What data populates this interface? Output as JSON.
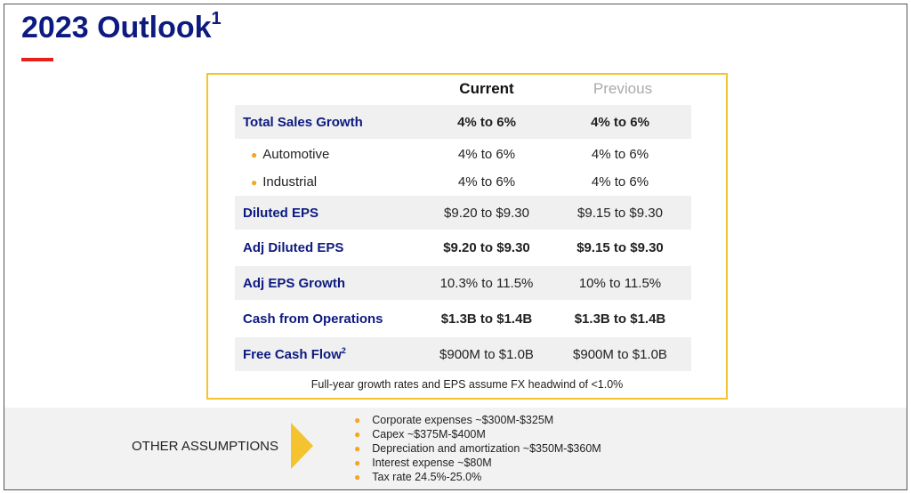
{
  "title": "2023 Outlook",
  "title_sup": "1",
  "headers": {
    "current": "Current",
    "previous": "Previous"
  },
  "rows": [
    {
      "label": "Total Sales Growth",
      "current": "4% to 6%",
      "previous": "4% to 6%"
    },
    {
      "label": "Automotive",
      "current": "4% to 6%",
      "previous": "4% to 6%"
    },
    {
      "label": "Industrial",
      "current": "4% to 6%",
      "previous": "4% to 6%"
    },
    {
      "label": "Diluted EPS",
      "current": "$9.20 to $9.30",
      "previous": "$9.15 to $9.30"
    },
    {
      "label": "Adj Diluted EPS",
      "current": "$9.20 to $9.30",
      "previous": "$9.15 to $9.30"
    },
    {
      "label": "Adj EPS Growth",
      "current": "10.3% to 11.5%",
      "previous": "10% to 11.5%"
    },
    {
      "label": "Cash from Operations",
      "current": "$1.3B to $1.4B",
      "previous": "$1.3B to $1.4B"
    },
    {
      "label": "Free Cash Flow",
      "label_sup": "2",
      "current": "$900M to $1.0B",
      "previous": "$900M to $1.0B"
    }
  ],
  "note": "Full-year growth rates and EPS assume FX headwind of <1.0%",
  "other": {
    "label": "OTHER ASSUMPTIONS",
    "items": [
      "Corporate expenses ~$300M-$325M",
      "Capex ~$375M-$400M",
      "Depreciation and amortization ~$350M-$360M",
      "Interest expense ~$80M",
      "Tax rate 24.5%-25.0%"
    ]
  },
  "colors": {
    "title": "#0d1a80",
    "accent": "#f5c330",
    "red": "#e8201a"
  }
}
